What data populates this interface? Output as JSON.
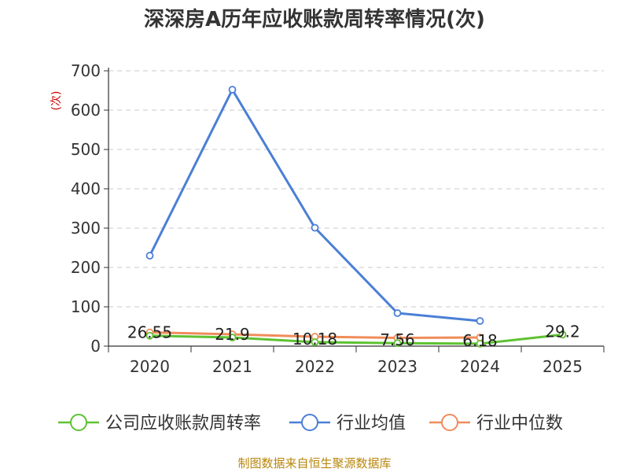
{
  "chart_data": {
    "type": "line",
    "title": "深深房A历年应收账款周转率情况(次)",
    "ylabel": "(次)",
    "xlabel": "",
    "categories": [
      "2020",
      "2021",
      "2022",
      "2023",
      "2024",
      "2025"
    ],
    "ylim": [
      0,
      700
    ],
    "yticks": [
      0,
      100,
      200,
      300,
      400,
      500,
      600,
      700
    ],
    "grid": "horizontal-dashed",
    "legend_position": "bottom",
    "series": [
      {
        "name": "公司应收账款周转率",
        "color": "#5ec232",
        "values": [
          26.55,
          21.9,
          10.18,
          7.56,
          6.18,
          29.2
        ],
        "labels": [
          "26.55",
          "21.9",
          "10.18",
          "7.56",
          "6.18",
          "29.2"
        ]
      },
      {
        "name": "行业均值",
        "color": "#4a7fd6",
        "values": [
          230,
          652,
          301,
          84,
          64,
          null
        ]
      },
      {
        "name": "行业中位数",
        "color": "#f08c5a",
        "values": [
          35,
          30,
          24,
          21,
          22,
          null
        ]
      }
    ]
  },
  "source": "制图数据来自恒生聚源数据库"
}
